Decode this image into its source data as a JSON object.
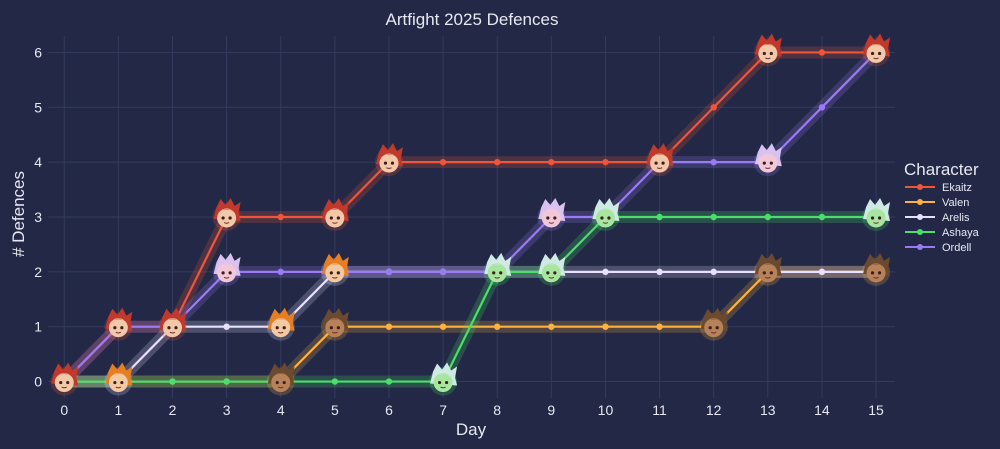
{
  "chart_data": {
    "type": "line",
    "title": "Artfight 2025 Defences",
    "xlabel": "Day",
    "ylabel": "# Defences",
    "x": [
      0,
      1,
      2,
      3,
      4,
      5,
      6,
      7,
      8,
      9,
      10,
      11,
      12,
      13,
      14,
      15
    ],
    "xlim": [
      -0.3,
      15.35
    ],
    "ylim": [
      -0.3,
      6.3
    ],
    "grid": true,
    "legend_title": "Character",
    "legend_placement": "right",
    "series": [
      {
        "name": "Ekaitz",
        "color": "#ef553b",
        "values": [
          0,
          1,
          1,
          3,
          3,
          3,
          4,
          4,
          4,
          4,
          4,
          4,
          5,
          6,
          6,
          6
        ],
        "avatar_days": [
          0,
          1,
          2,
          3,
          5,
          6,
          11,
          13,
          15
        ],
        "avatar_hair": "#c0392b",
        "avatar_skin": "#f2c8a8"
      },
      {
        "name": "Valen",
        "color": "#fdb13f",
        "values": [
          0,
          0,
          0,
          0,
          0,
          1,
          1,
          1,
          1,
          1,
          1,
          1,
          1,
          2,
          2,
          2
        ],
        "avatar_days": [
          4,
          5,
          12,
          13,
          15
        ],
        "avatar_hair": "#6b4a2f",
        "avatar_skin": "#b7825a"
      },
      {
        "name": "Arelis",
        "color": "#e8e0ff",
        "values": [
          0,
          0,
          1,
          1,
          1,
          2,
          2,
          2,
          2,
          2,
          2,
          2,
          2,
          2,
          2,
          2
        ],
        "avatar_days": [
          1,
          4,
          5
        ],
        "avatar_hair": "#e67e22",
        "avatar_skin": "#f3c9a2"
      },
      {
        "name": "Ashaya",
        "color": "#4ade6a",
        "values": [
          0,
          0,
          0,
          0,
          0,
          0,
          0,
          0,
          2,
          2,
          3,
          3,
          3,
          3,
          3,
          3
        ],
        "avatar_days": [
          7,
          8,
          9,
          10,
          15
        ],
        "avatar_hair": "#cfe9e4",
        "avatar_skin": "#a8e6a0"
      },
      {
        "name": "Ordell",
        "color": "#9b7bf5",
        "values": [
          0,
          1,
          1,
          2,
          2,
          2,
          2,
          2,
          2,
          3,
          3,
          4,
          4,
          4,
          5,
          6
        ],
        "avatar_days": [
          3,
          9,
          13
        ],
        "avatar_hair": "#d9c2f0",
        "avatar_skin": "#f2c8d8"
      }
    ]
  }
}
